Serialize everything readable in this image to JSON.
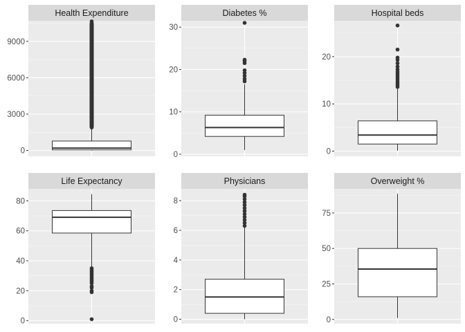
{
  "chart_data": [
    {
      "type": "boxplot",
      "title": "Health Expenditure",
      "ylim": [
        -480,
        10700
      ],
      "yticks": [
        0,
        3000,
        6000,
        9000
      ],
      "ytick_labels": [
        "0",
        "3000",
        "6000",
        "9000"
      ],
      "box": {
        "min": 0,
        "q1": 50,
        "median": 200,
        "q3": 780,
        "max": 1800
      },
      "outliers_range": [
        1800,
        10650
      ],
      "outliers": [
        1900,
        2150,
        2400,
        2650,
        2900,
        3200,
        3500,
        3800,
        4100,
        4400,
        4700,
        5000,
        5300,
        5600,
        5900,
        6200,
        6500,
        6800,
        7100,
        7400,
        7700,
        8000,
        8300,
        8600,
        8900,
        9200,
        9500,
        9800,
        10100,
        10400,
        10650
      ]
    },
    {
      "type": "boxplot",
      "title": "Diabetes %",
      "ylim": [
        -0.5,
        31.5
      ],
      "yticks": [
        0,
        10,
        20,
        30
      ],
      "ytick_labels": [
        "0",
        "10",
        "20",
        "30"
      ],
      "box": {
        "min": 1.0,
        "q1": 4.2,
        "median": 6.3,
        "q3": 9.2,
        "max": 16.5
      },
      "outliers": [
        17.2,
        17.8,
        18.5,
        19.2,
        19.8,
        21.5,
        22.0,
        22.3,
        31.0
      ]
    },
    {
      "type": "boxplot",
      "title": "Hospital beds",
      "ylim": [
        -1.1,
        27.6
      ],
      "yticks": [
        0,
        10,
        20
      ],
      "ytick_labels": [
        "0",
        "10",
        "20"
      ],
      "box": {
        "min": 0.1,
        "q1": 1.5,
        "median": 3.4,
        "q3": 6.4,
        "max": 13.3
      },
      "outliers": [
        13.6,
        14.0,
        14.4,
        14.8,
        15.2,
        15.6,
        16.0,
        16.4,
        16.8,
        17.3,
        17.9,
        18.6,
        19.3,
        19.8,
        21.5,
        26.6
      ]
    },
    {
      "type": "boxplot",
      "title": "Life Expectancy",
      "ylim": [
        -2,
        88
      ],
      "yticks": [
        0,
        20,
        40,
        60,
        80
      ],
      "ytick_labels": [
        "0",
        "20",
        "40",
        "60",
        "80"
      ],
      "box": {
        "min": 36,
        "q1": 58.5,
        "median": 69,
        "q3": 73.5,
        "max": 84.5
      },
      "outliers": [
        35,
        34,
        33,
        32,
        31,
        30,
        29,
        28,
        27,
        26,
        25,
        23,
        22,
        20,
        19,
        1
      ]
    },
    {
      "type": "boxplot",
      "title": "Physicians",
      "ylim": [
        -0.3,
        8.8
      ],
      "yticks": [
        0,
        2,
        4,
        6,
        8
      ],
      "ytick_labels": [
        "0",
        "2",
        "4",
        "6",
        "8"
      ],
      "box": {
        "min": 0.0,
        "q1": 0.4,
        "median": 1.5,
        "q3": 2.7,
        "max": 6.2
      },
      "outliers": [
        6.3,
        6.5,
        6.7,
        6.9,
        7.1,
        7.3,
        7.5,
        7.7,
        7.9,
        8.1,
        8.3,
        8.4
      ]
    },
    {
      "type": "boxplot",
      "title": "Overweight %",
      "ylim": [
        -3,
        92
      ],
      "yticks": [
        0,
        25,
        50,
        75
      ],
      "ytick_labels": [
        "0",
        "25",
        "50",
        "75"
      ],
      "box": {
        "min": 1,
        "q1": 16,
        "median": 35.5,
        "q3": 50,
        "max": 88.5
      },
      "outliers": []
    }
  ]
}
